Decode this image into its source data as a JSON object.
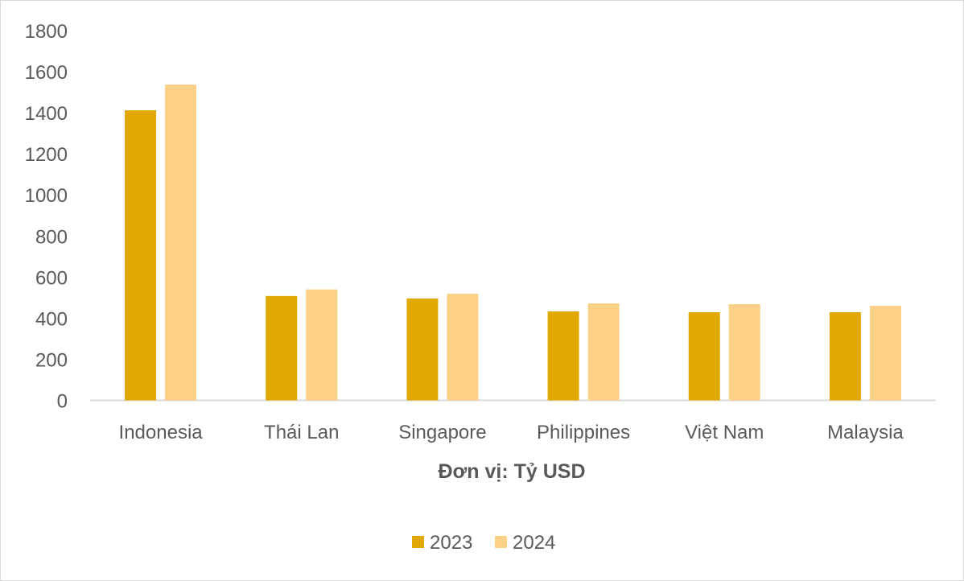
{
  "chart_data": {
    "type": "bar",
    "title": "",
    "xlabel": "Đơn vị: Tỷ USD",
    "ylabel": "",
    "ylim": [
      0,
      1800
    ],
    "yticks": [
      "0",
      "200",
      "400",
      "600",
      "800",
      "1000",
      "1200",
      "1400",
      "1600",
      "1800"
    ],
    "grid": false,
    "legend_position": "bottom",
    "categories": [
      "Indonesia",
      "Thái Lan",
      "Singapore",
      "Philippines",
      "Việt Nam",
      "Malaysia"
    ],
    "series": [
      {
        "name": "2023",
        "color": "#E0A800",
        "values": [
          1412,
          508,
          496,
          433,
          429,
          429
        ]
      },
      {
        "name": "2024",
        "color": "#FDD088",
        "values": [
          1537,
          540,
          519,
          472,
          468,
          460
        ]
      }
    ]
  }
}
